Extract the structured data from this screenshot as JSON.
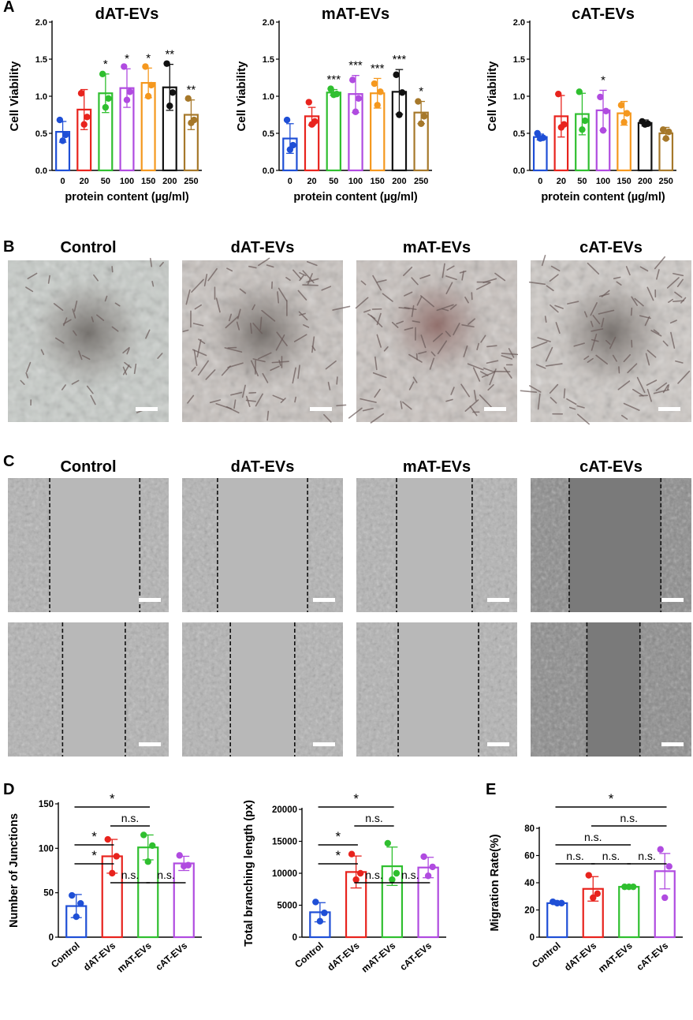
{
  "panels": {
    "a": "A",
    "b": "B",
    "c": "C",
    "d": "D",
    "e": "E"
  },
  "colors": {
    "c0": "#1f4fd6",
    "c20": "#e8231d",
    "c50": "#2fbf2f",
    "c100": "#b04be0",
    "c150": "#f5981e",
    "c200": "#111111",
    "c250": "#a6782a"
  },
  "chart_data": [
    {
      "id": "dAT",
      "type": "bar",
      "title": "dAT-EVs",
      "xlabel": "protein content (µg/ml)",
      "ylabel": "Cell Viability",
      "ylim": [
        0,
        2.0
      ],
      "yticks": [
        "0.0",
        "0.5",
        "1.0",
        "1.5",
        "2.0"
      ],
      "categories": [
        "0",
        "20",
        "50",
        "100",
        "150",
        "200",
        "250"
      ],
      "values": [
        0.52,
        0.82,
        1.04,
        1.11,
        1.18,
        1.12,
        0.75
      ],
      "errors": [
        0.14,
        0.27,
        0.26,
        0.26,
        0.2,
        0.31,
        0.2
      ],
      "points": [
        [
          0.68,
          0.48,
          0.4
        ],
        [
          1.04,
          0.72,
          0.62
        ],
        [
          1.3,
          0.97,
          0.85
        ],
        [
          1.4,
          1.06,
          0.95
        ],
        [
          1.4,
          1.15,
          1.0
        ],
        [
          1.44,
          1.05,
          0.87
        ],
        [
          0.97,
          0.68,
          0.64
        ]
      ],
      "significance": [
        "",
        "",
        "*",
        "*",
        "*",
        "**",
        "**"
      ],
      "colors": [
        "#1f4fd6",
        "#e8231d",
        "#2fbf2f",
        "#b04be0",
        "#f5981e",
        "#111111",
        "#a6782a"
      ]
    },
    {
      "id": "mAT",
      "type": "bar",
      "title": "mAT-EVs",
      "xlabel": "protein content (µg/ml)",
      "ylabel": "Cell Viability",
      "ylim": [
        0,
        2.0
      ],
      "yticks": [
        "0.0",
        "0.5",
        "1.0",
        "1.5",
        "2.0"
      ],
      "categories": [
        "0",
        "20",
        "50",
        "100",
        "150",
        "200",
        "250"
      ],
      "values": [
        0.43,
        0.73,
        1.05,
        1.03,
        1.04,
        1.06,
        0.78
      ],
      "errors": [
        0.2,
        0.12,
        0.04,
        0.25,
        0.2,
        0.3,
        0.15
      ],
      "points": [
        [
          0.68,
          0.34,
          0.28
        ],
        [
          0.92,
          0.66,
          0.62
        ],
        [
          1.1,
          1.03,
          1.02
        ],
        [
          1.22,
          0.97,
          0.79
        ],
        [
          1.17,
          1.06,
          0.88
        ],
        [
          1.29,
          1.05,
          0.75
        ],
        [
          0.93,
          0.73,
          0.63
        ]
      ],
      "significance": [
        "",
        "",
        "***",
        "***",
        "***",
        "***",
        "*"
      ],
      "colors": [
        "#1f4fd6",
        "#e8231d",
        "#2fbf2f",
        "#b04be0",
        "#f5981e",
        "#111111",
        "#a6782a"
      ]
    },
    {
      "id": "cAT",
      "type": "bar",
      "title": "cAT-EVs",
      "xlabel": "protein content (µg/ml)",
      "ylabel": "Cell Viability",
      "ylim": [
        0,
        2.0
      ],
      "yticks": [
        "0.0",
        "0.5",
        "1.0",
        "1.5",
        "2.0"
      ],
      "categories": [
        "0",
        "20",
        "50",
        "100",
        "150",
        "200",
        "250"
      ],
      "values": [
        0.45,
        0.73,
        0.76,
        0.81,
        0.77,
        0.64,
        0.5
      ],
      "errors": [
        0.04,
        0.28,
        0.28,
        0.27,
        0.16,
        0.04,
        0.08
      ],
      "points": [
        [
          0.5,
          0.44,
          0.43
        ],
        [
          1.03,
          0.62,
          0.58
        ],
        [
          1.06,
          0.67,
          0.55
        ],
        [
          0.99,
          0.8,
          0.54
        ],
        [
          0.88,
          0.77,
          0.65
        ],
        [
          0.66,
          0.63,
          0.62
        ],
        [
          0.55,
          0.52,
          0.43
        ]
      ],
      "significance": [
        "",
        "",
        "",
        "*",
        "",
        "",
        ""
      ],
      "colors": [
        "#1f4fd6",
        "#e8231d",
        "#2fbf2f",
        "#b04be0",
        "#f5981e",
        "#111111",
        "#a6782a"
      ]
    },
    {
      "id": "junctions",
      "type": "bar",
      "ylabel": "Number of Junctions",
      "ylim": [
        0,
        150
      ],
      "yticks": [
        "0",
        "50",
        "100",
        "150"
      ],
      "categories": [
        "Control",
        "dAT-EVs",
        "mAT-EVs",
        "cAT-EVs"
      ],
      "values": [
        35,
        91,
        101,
        83
      ],
      "errors": [
        13,
        19,
        14,
        8
      ],
      "points": [
        [
          47,
          38,
          23
        ],
        [
          110,
          91,
          72
        ],
        [
          115,
          103,
          85
        ],
        [
          92,
          81,
          80
        ]
      ],
      "brackets": [
        {
          "from": 0,
          "to": 2,
          "label": "*",
          "level": 0
        },
        {
          "from": 1,
          "to": 2,
          "label": "n.s.",
          "level": 1
        },
        {
          "from": 0,
          "to": 1,
          "label": "*",
          "level": 2
        },
        {
          "from": 0,
          "to": 1,
          "label": "*",
          "level": 3
        },
        {
          "from": 1,
          "to": 2,
          "label": "n.s.",
          "level": 4
        },
        {
          "from": 2,
          "to": 3,
          "label": "n.s.",
          "level": 4
        }
      ],
      "colors": [
        "#1f4fd6",
        "#e8231d",
        "#2fbf2f",
        "#b04be0"
      ]
    },
    {
      "id": "branching",
      "type": "bar",
      "ylabel": "Total branching length (px)",
      "ylim": [
        0,
        20000
      ],
      "yticks": [
        "0",
        "5000",
        "10000",
        "15000",
        "20000"
      ],
      "categories": [
        "Control",
        "dAT-EVs",
        "mAT-EVs",
        "cAT-EVs"
      ],
      "values": [
        3900,
        10200,
        11100,
        10900
      ],
      "errors": [
        1500,
        2500,
        3000,
        1600
      ],
      "points": [
        [
          5500,
          3800,
          2500
        ],
        [
          13000,
          10000,
          9000
        ],
        [
          14700,
          10000,
          9000
        ],
        [
          12600,
          11000,
          9600
        ]
      ],
      "brackets": [
        {
          "from": 0,
          "to": 2,
          "label": "*",
          "level": 0
        },
        {
          "from": 1,
          "to": 2,
          "label": "n.s.",
          "level": 1
        },
        {
          "from": 0,
          "to": 1,
          "label": "*",
          "level": 2
        },
        {
          "from": 0,
          "to": 1,
          "label": "*",
          "level": 3
        },
        {
          "from": 1,
          "to": 2,
          "label": "n.s.",
          "level": 4
        },
        {
          "from": 2,
          "to": 3,
          "label": "n.s.",
          "level": 4
        }
      ],
      "colors": [
        "#1f4fd6",
        "#e8231d",
        "#2fbf2f",
        "#b04be0"
      ]
    },
    {
      "id": "migration",
      "type": "bar",
      "ylabel": "Migration Rate(%)",
      "ylim": [
        0,
        80
      ],
      "yticks": [
        "0",
        "20",
        "40",
        "60",
        "80"
      ],
      "categories": [
        "Control",
        "dAT-EVs",
        "mAT-EVs",
        "cAT-EVs"
      ],
      "values": [
        25,
        35.5,
        37,
        48.5
      ],
      "errors": [
        1,
        9,
        0.5,
        13
      ],
      "points": [
        [
          26,
          25,
          25
        ],
        [
          45.5,
          32,
          29
        ],
        [
          37,
          37,
          37
        ],
        [
          64.5,
          52,
          29
        ]
      ],
      "brackets": [
        {
          "from": 0,
          "to": 3,
          "label": "*",
          "level": 0
        },
        {
          "from": 1,
          "to": 3,
          "label": "n.s.",
          "level": 1
        },
        {
          "from": 0,
          "to": 2,
          "label": "n.s.",
          "level": 2
        },
        {
          "from": 0,
          "to": 1,
          "label": "n.s.",
          "level": 3
        },
        {
          "from": 1,
          "to": 2,
          "label": "n.s.",
          "level": 3
        },
        {
          "from": 2,
          "to": 3,
          "label": "n.s.",
          "level": 3
        }
      ],
      "colors": [
        "#1f4fd6",
        "#e8231d",
        "#2fbf2f",
        "#b04be0"
      ]
    }
  ],
  "images_b": {
    "titles": [
      "Control",
      "dAT-EVs",
      "mAT-EVs",
      "cAT-EVs"
    ]
  },
  "images_c": {
    "titles": [
      "Control",
      "dAT-EVs",
      "mAT-EVs",
      "cAT-EVs"
    ],
    "gaps_top": [
      [
        0.26,
        0.82
      ],
      [
        0.22,
        0.78
      ],
      [
        0.25,
        0.72
      ],
      [
        0.24,
        0.81
      ]
    ],
    "gaps_bottom": [
      [
        0.34,
        0.73
      ],
      [
        0.3,
        0.7
      ],
      [
        0.26,
        0.76
      ],
      [
        0.35,
        0.68
      ]
    ]
  }
}
